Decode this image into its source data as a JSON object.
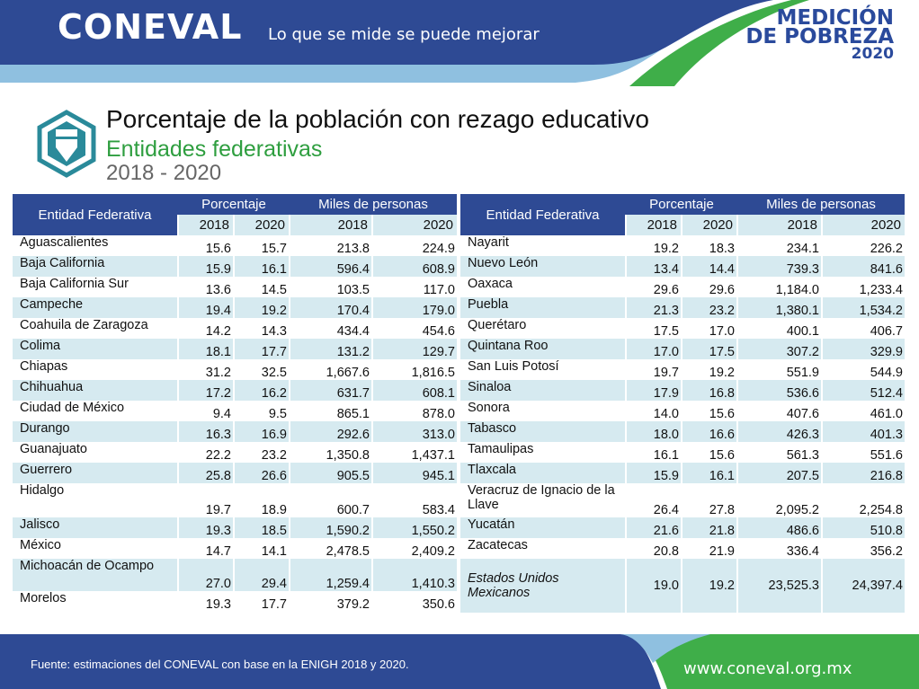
{
  "header": {
    "logo": "CONEVAL",
    "slogan": "Lo que se mide se puede mejorar",
    "brand_line1": "MEDICIÓN",
    "brand_line2": "DE POBREZA",
    "brand_line3": "2020",
    "colors": {
      "blue": "#2e4a94",
      "green": "#2e9e3f",
      "light_blue": "#d6eaf0"
    }
  },
  "title_block": {
    "icon": "pencil-hexagon-icon",
    "title": "Porcentaje de la población con rezago educativo",
    "subtitle": "Entidades federativas",
    "years": "2018 - 2020"
  },
  "table_headers": {
    "entity": "Entidad Federativa",
    "percent": "Porcentaje",
    "people": "Miles de personas",
    "y2018": "2018",
    "y2020": "2020"
  },
  "table_left": [
    {
      "name": "Aguascalientes",
      "p2018": "15.6",
      "p2020": "15.7",
      "m2018": "213.8",
      "m2020": "224.9"
    },
    {
      "name": "Baja California",
      "p2018": "15.9",
      "p2020": "16.1",
      "m2018": "596.4",
      "m2020": "608.9"
    },
    {
      "name": "Baja California Sur",
      "p2018": "13.6",
      "p2020": "14.5",
      "m2018": "103.5",
      "m2020": "117.0"
    },
    {
      "name": "Campeche",
      "p2018": "19.4",
      "p2020": "19.2",
      "m2018": "170.4",
      "m2020": "179.0"
    },
    {
      "name": "Coahuila de Zaragoza",
      "p2018": "14.2",
      "p2020": "14.3",
      "m2018": "434.4",
      "m2020": "454.6"
    },
    {
      "name": "Colima",
      "p2018": "18.1",
      "p2020": "17.7",
      "m2018": "131.2",
      "m2020": "129.7"
    },
    {
      "name": "Chiapas",
      "p2018": "31.2",
      "p2020": "32.5",
      "m2018": "1,667.6",
      "m2020": "1,816.5"
    },
    {
      "name": "Chihuahua",
      "p2018": "17.2",
      "p2020": "16.2",
      "m2018": "631.7",
      "m2020": "608.1"
    },
    {
      "name": "Ciudad de México",
      "p2018": "9.4",
      "p2020": "9.5",
      "m2018": "865.1",
      "m2020": "878.0"
    },
    {
      "name": "Durango",
      "p2018": "16.3",
      "p2020": "16.9",
      "m2018": "292.6",
      "m2020": "313.0"
    },
    {
      "name": "Guanajuato",
      "p2018": "22.2",
      "p2020": "23.2",
      "m2018": "1,350.8",
      "m2020": "1,437.1"
    },
    {
      "name": "Guerrero",
      "p2018": "25.8",
      "p2020": "26.6",
      "m2018": "905.5",
      "m2020": "945.1"
    },
    {
      "name": "Hidalgo",
      "p2018": "19.7",
      "p2020": "18.9",
      "m2018": "600.7",
      "m2020": "583.4"
    },
    {
      "name": "Jalisco",
      "p2018": "19.3",
      "p2020": "18.5",
      "m2018": "1,590.2",
      "m2020": "1,550.2"
    },
    {
      "name": "México",
      "p2018": "14.7",
      "p2020": "14.1",
      "m2018": "2,478.5",
      "m2020": "2,409.2"
    },
    {
      "name": "Michoacán de Ocampo",
      "p2018": "27.0",
      "p2020": "29.4",
      "m2018": "1,259.4",
      "m2020": "1,410.3"
    },
    {
      "name": "Morelos",
      "p2018": "19.3",
      "p2020": "17.7",
      "m2018": "379.2",
      "m2020": "350.6"
    }
  ],
  "table_right": [
    {
      "name": "Nayarit",
      "p2018": "19.2",
      "p2020": "18.3",
      "m2018": "234.1",
      "m2020": "226.2"
    },
    {
      "name": "Nuevo León",
      "p2018": "13.4",
      "p2020": "14.4",
      "m2018": "739.3",
      "m2020": "841.6"
    },
    {
      "name": "Oaxaca",
      "p2018": "29.6",
      "p2020": "29.6",
      "m2018": "1,184.0",
      "m2020": "1,233.4"
    },
    {
      "name": "Puebla",
      "p2018": "21.3",
      "p2020": "23.2",
      "m2018": "1,380.1",
      "m2020": "1,534.2"
    },
    {
      "name": "Querétaro",
      "p2018": "17.5",
      "p2020": "17.0",
      "m2018": "400.1",
      "m2020": "406.7"
    },
    {
      "name": "Quintana Roo",
      "p2018": "17.0",
      "p2020": "17.5",
      "m2018": "307.2",
      "m2020": "329.9"
    },
    {
      "name": "San Luis Potosí",
      "p2018": "19.7",
      "p2020": "19.2",
      "m2018": "551.9",
      "m2020": "544.9"
    },
    {
      "name": "Sinaloa",
      "p2018": "17.9",
      "p2020": "16.8",
      "m2018": "536.6",
      "m2020": "512.4"
    },
    {
      "name": "Sonora",
      "p2018": "14.0",
      "p2020": "15.6",
      "m2018": "407.6",
      "m2020": "461.0"
    },
    {
      "name": "Tabasco",
      "p2018": "18.0",
      "p2020": "16.6",
      "m2018": "426.3",
      "m2020": "401.3"
    },
    {
      "name": "Tamaulipas",
      "p2018": "16.1",
      "p2020": "15.6",
      "m2018": "561.3",
      "m2020": "551.6"
    },
    {
      "name": "Tlaxcala",
      "p2018": "15.9",
      "p2020": "16.1",
      "m2018": "207.5",
      "m2020": "216.8"
    },
    {
      "name": "Veracruz de Ignacio de la Llave",
      "p2018": "26.4",
      "p2020": "27.8",
      "m2018": "2,095.2",
      "m2020": "2,254.8"
    },
    {
      "name": "Yucatán",
      "p2018": "21.6",
      "p2020": "21.8",
      "m2018": "486.6",
      "m2020": "510.8"
    },
    {
      "name": "Zacatecas",
      "p2018": "20.8",
      "p2020": "21.9",
      "m2018": "336.4",
      "m2020": "356.2"
    },
    {
      "name": "Estados Unidos Mexicanos",
      "p2018": "19.0",
      "p2020": "19.2",
      "m2018": "23,525.3",
      "m2020": "24,397.4",
      "total": true
    }
  ],
  "footer": {
    "source": "Fuente: estimaciones del CONEVAL con base en la ENIGH 2018 y 2020.",
    "url": "www.coneval.org.mx"
  }
}
